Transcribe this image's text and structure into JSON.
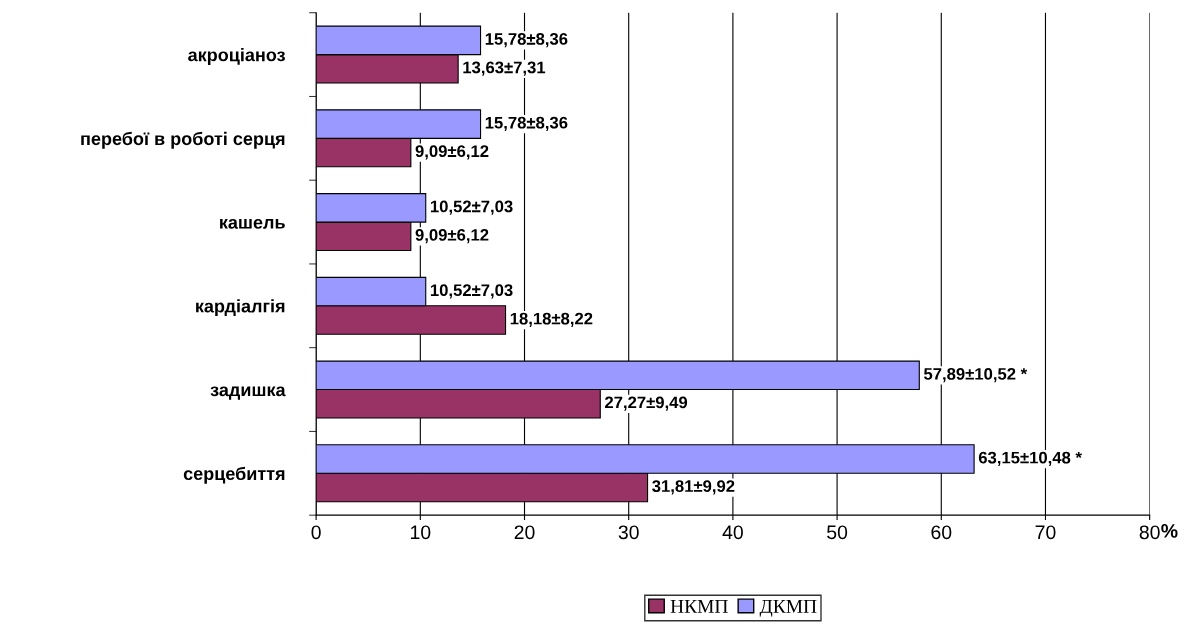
{
  "chart_data": {
    "type": "bar",
    "orientation": "horizontal",
    "categories": [
      "акроціаноз",
      "перебої в роботі серця",
      "кашель",
      "кардіалгія",
      "задишка",
      "серцебиття"
    ],
    "series": [
      {
        "name": "НКМП",
        "color": "#993366",
        "values": [
          13.63,
          9.09,
          9.09,
          18.18,
          27.27,
          31.81
        ],
        "value_labels": [
          "13,63±7,31",
          "9,09±6,12",
          "9,09±6,12",
          "18,18±8,22",
          "27,27±9,49",
          "31,81±9,92"
        ]
      },
      {
        "name": "ДКМП",
        "color": "#9999ff",
        "values": [
          15.78,
          15.78,
          10.52,
          10.52,
          57.89,
          63.15
        ],
        "value_labels": [
          "15,78±8,36",
          "15,78±8,36",
          "10,52±7,03",
          "10,52±7,03",
          "57,89±10,52 *",
          "63,15±10,48 *"
        ]
      }
    ],
    "xlim": [
      0,
      80
    ],
    "xticks": [
      0,
      10,
      20,
      30,
      40,
      50,
      60,
      70,
      80
    ],
    "xlabel": "%",
    "grid": "x",
    "legend": "bottom"
  }
}
